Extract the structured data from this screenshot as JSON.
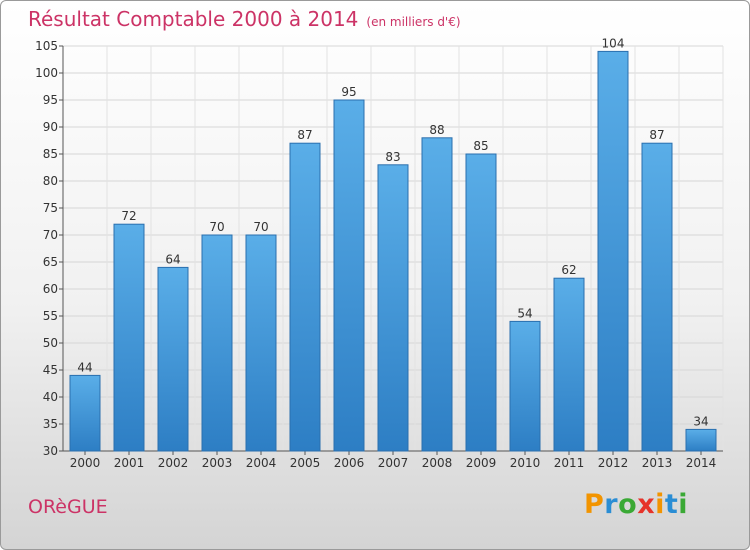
{
  "header": {
    "title": "Résultat Comptable 2000 à 2014",
    "subtitle": "(en milliers d'€)"
  },
  "commune": "ORèGUE",
  "logo": {
    "letters": [
      "P",
      "r",
      "o",
      "x",
      "i",
      "t",
      "i"
    ],
    "colors": [
      "#f29400",
      "#2a8dd4",
      "#3aa935",
      "#e6332a",
      "#f29400",
      "#2a8dd4",
      "#3aa935"
    ]
  },
  "colors": {
    "bar_top": "#5aaee8",
    "bar_bottom": "#2d7ec4",
    "bar_edge": "#2a6fae",
    "title": "#cc3366"
  },
  "chart_data": {
    "type": "bar",
    "title": "Résultat Comptable 2000 à 2014",
    "subtitle": "(en milliers d'€)",
    "categories": [
      "2000",
      "2001",
      "2002",
      "2003",
      "2004",
      "2005",
      "2006",
      "2007",
      "2008",
      "2009",
      "2010",
      "2011",
      "2012",
      "2013",
      "2014"
    ],
    "values": [
      44,
      72,
      64,
      70,
      70,
      87,
      95,
      83,
      88,
      85,
      54,
      62,
      104,
      87,
      34
    ],
    "ylim": [
      30,
      105
    ],
    "yticks": [
      30,
      35,
      40,
      45,
      50,
      55,
      60,
      65,
      70,
      75,
      80,
      85,
      90,
      95,
      100,
      105
    ],
    "grid": true,
    "data_labels": true
  }
}
